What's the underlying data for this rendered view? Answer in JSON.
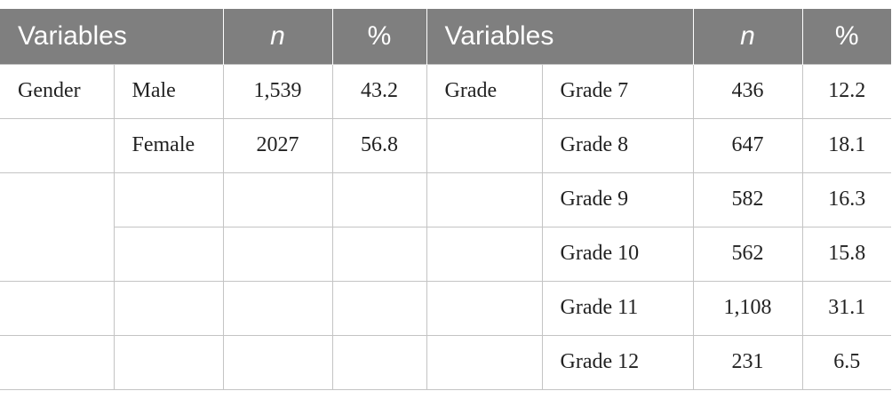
{
  "table": {
    "header": [
      "Variables",
      "n",
      "%",
      "Variables",
      "n",
      "%"
    ],
    "rows": [
      [
        "Gender",
        "Male",
        "1,539",
        "43.2",
        "Grade",
        "Grade 7",
        "436",
        "12.2"
      ],
      [
        null,
        "Female",
        "2027",
        "56.8",
        null,
        "Grade 8",
        "647",
        "18.1"
      ],
      [
        null,
        null,
        null,
        null,
        null,
        "Grade 9",
        "582",
        "16.3"
      ],
      [
        null,
        null,
        null,
        null,
        null,
        "Grade 10",
        "562",
        "15.8"
      ],
      [
        null,
        null,
        null,
        null,
        null,
        "Grade 11",
        "1,108",
        "31.1"
      ],
      [
        null,
        null,
        null,
        null,
        null,
        "Grade 12",
        "231",
        "6.5"
      ]
    ]
  }
}
